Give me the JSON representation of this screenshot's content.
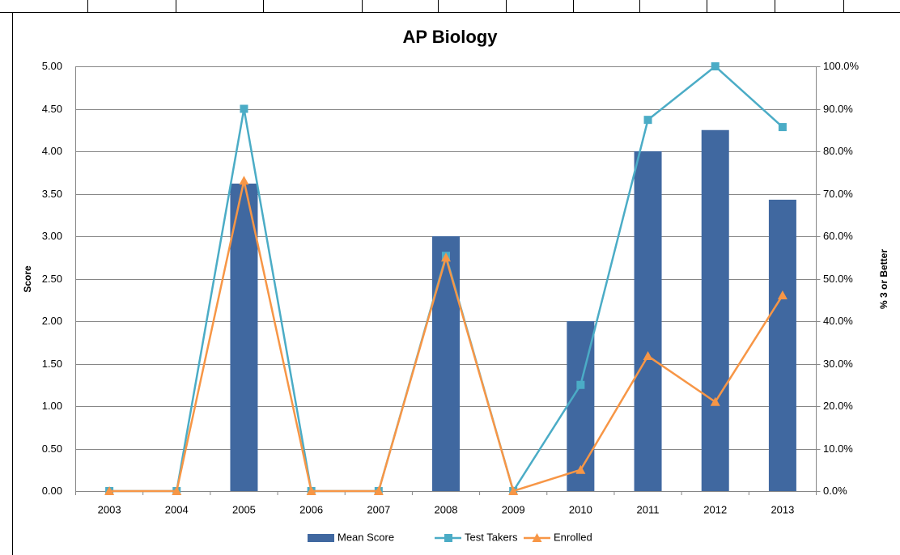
{
  "chart_data": {
    "type": "bar",
    "title": "AP Biology",
    "categories": [
      "2003",
      "2004",
      "2005",
      "2006",
      "2007",
      "2008",
      "2009",
      "2010",
      "2011",
      "2012",
      "2013"
    ],
    "series": [
      {
        "name": "Mean Score",
        "color": "#4068a0",
        "type": "bar",
        "values": [
          0,
          0,
          3.62,
          0,
          0,
          3.0,
          0,
          2.0,
          4.0,
          4.25,
          3.43
        ]
      },
      {
        "name": "Test Takers",
        "color": "#4bacc6",
        "type": "line",
        "marker": "square",
        "axis": "y2",
        "values": [
          0,
          0,
          90,
          0,
          0,
          55.4,
          0,
          25,
          87.4,
          100,
          85.7
        ]
      },
      {
        "name": "Enrolled",
        "color": "#f79646",
        "type": "line",
        "marker": "triangle",
        "axis": "y2",
        "values": [
          0,
          0,
          73.1,
          0,
          0,
          55,
          0,
          5,
          31.8,
          21,
          46.1
        ]
      }
    ],
    "y_label": "Score",
    "y2_label": "% 3 or Better",
    "ylim": [
      0,
      5
    ],
    "yticks": [
      {
        "value": 0,
        "label": "0.00"
      },
      {
        "value": 0.5,
        "label": "0.50"
      },
      {
        "value": 1,
        "label": "1.00"
      },
      {
        "value": 1.5,
        "label": "1.50"
      },
      {
        "value": 2,
        "label": "2.00"
      },
      {
        "value": 2.5,
        "label": "2.50"
      },
      {
        "value": 3,
        "label": "3.00"
      },
      {
        "value": 3.5,
        "label": "3.50"
      },
      {
        "value": 4,
        "label": "4.00"
      },
      {
        "value": 4.5,
        "label": "4.50"
      },
      {
        "value": 5,
        "label": "5.00"
      }
    ],
    "y2lim": [
      0,
      100
    ],
    "y2ticks": [
      {
        "value": 0,
        "label": "0.0%"
      },
      {
        "value": 10,
        "label": "10.0%"
      },
      {
        "value": 20,
        "label": "20.0%"
      },
      {
        "value": 30,
        "label": "30.0%"
      },
      {
        "value": 40,
        "label": "40.0%"
      },
      {
        "value": 50,
        "label": "50.0%"
      },
      {
        "value": 60,
        "label": "60.0%"
      },
      {
        "value": 70,
        "label": "70.0%"
      },
      {
        "value": 80,
        "label": "80.0%"
      },
      {
        "value": 90,
        "label": "90.0%"
      },
      {
        "value": 100,
        "label": "100.0%"
      }
    ],
    "grid": true,
    "legend": "bottom"
  }
}
